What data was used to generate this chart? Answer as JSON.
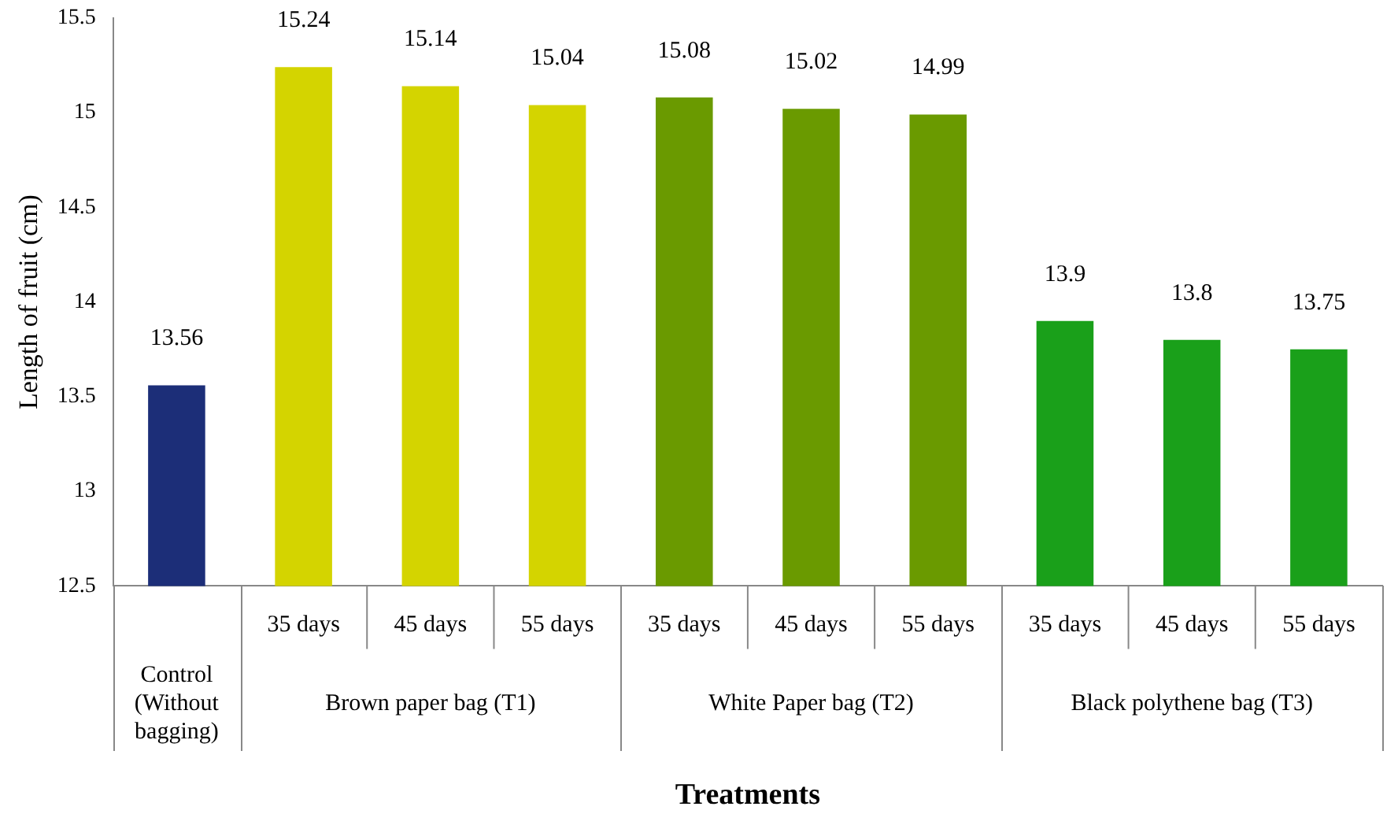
{
  "chart_data": {
    "type": "bar",
    "xlabel": "Treatments",
    "ylabel": "Length of fruit (cm)",
    "categories": [
      null,
      "35 days",
      "45 days",
      "55 days",
      "35 days",
      "45 days",
      "55 days",
      "35 days",
      "45 days",
      "55 days"
    ],
    "values": [
      13.56,
      15.24,
      15.14,
      15.04,
      15.08,
      15.02,
      14.99,
      13.9,
      13.8,
      13.75
    ],
    "colors": [
      "#1c2e78",
      "#d4d400",
      "#d4d400",
      "#d4d400",
      "#6a9a00",
      "#6a9a00",
      "#6a9a00",
      "#1aa01a",
      "#1aa01a",
      "#1aa01a"
    ],
    "ylim": [
      12.5,
      15.5
    ],
    "yticks": [
      12.5,
      13,
      13.5,
      14,
      14.5,
      15,
      15.5
    ],
    "data_labels": true,
    "grid": false,
    "legend": false,
    "annotations": [
      "Control (Without bagging)",
      "Brown paper bag (T1)",
      "White Paper bag (T2)",
      "Black polythene bag (T3)"
    ]
  }
}
